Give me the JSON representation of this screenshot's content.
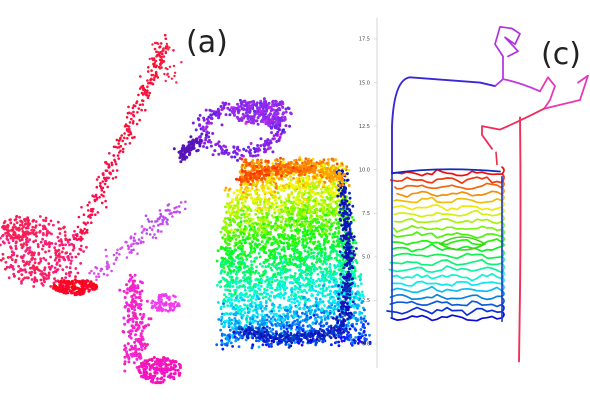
{
  "panels": [
    {
      "id": "a",
      "label": "(a)"
    },
    {
      "id": "c",
      "label": "(c)"
    }
  ],
  "chart_data": [
    {
      "panel": "(a)",
      "type": "scatter",
      "title": "",
      "xlabel": "",
      "ylabel": "",
      "axes_visible": false,
      "grid": false,
      "color_encoding": "hue rainbow (red → orange → yellow → green → cyan → blue → purple → magenta → pink)",
      "clusters": [
        {
          "region": "thin diagonal strand (upper left)",
          "color": "#ff2040"
        },
        {
          "region": "left cloud",
          "color": "#ff2070"
        },
        {
          "region": "lower magenta tail",
          "color": "#ee20b0"
        },
        {
          "region": "purple loop (top)",
          "color": "#8a20ee"
        },
        {
          "region": "main blob",
          "colors": [
            "#ff3020",
            "#ffa000",
            "#e8e800",
            "#40e040",
            "#20d0d0",
            "#2090f0",
            "#1020d0"
          ]
        }
      ]
    },
    {
      "panel": "(c)",
      "type": "line",
      "title": "",
      "xlabel": "",
      "ylabel": "",
      "grid": false,
      "ylim": [
        -1.2,
        18.8
      ],
      "yticks": [
        "0.0",
        "2.5",
        "5.0",
        "7.5",
        "10.0",
        "12.5",
        "15.0",
        "17.5"
      ],
      "color_encoding": "trajectory hue rainbow",
      "series": [
        {
          "segment": "stacked horizontal sweeps",
          "y_from": 1.5,
          "y_to": 9.8,
          "colors": [
            "#1a1ad0",
            "#2060f0",
            "#20b0f0",
            "#20d8c0",
            "#30e070",
            "#a0e020",
            "#f0e020",
            "#ffa020",
            "#ff5020",
            "#e82020"
          ]
        },
        {
          "segment": "upper blue loop",
          "y_from": 9.8,
          "y_to": 15.3,
          "color": "#3a28d8"
        },
        {
          "segment": "purple branch to top",
          "y_from": 15.0,
          "y_to": 18.2,
          "color": "#b030e0"
        },
        {
          "segment": "pink arms",
          "y_from": 12.0,
          "y_to": 15.5,
          "color": "#e838b8"
        },
        {
          "segment": "red vertical tail",
          "y_from": -1.0,
          "y_to": 13.0,
          "color": "#f0305a"
        }
      ]
    }
  ]
}
